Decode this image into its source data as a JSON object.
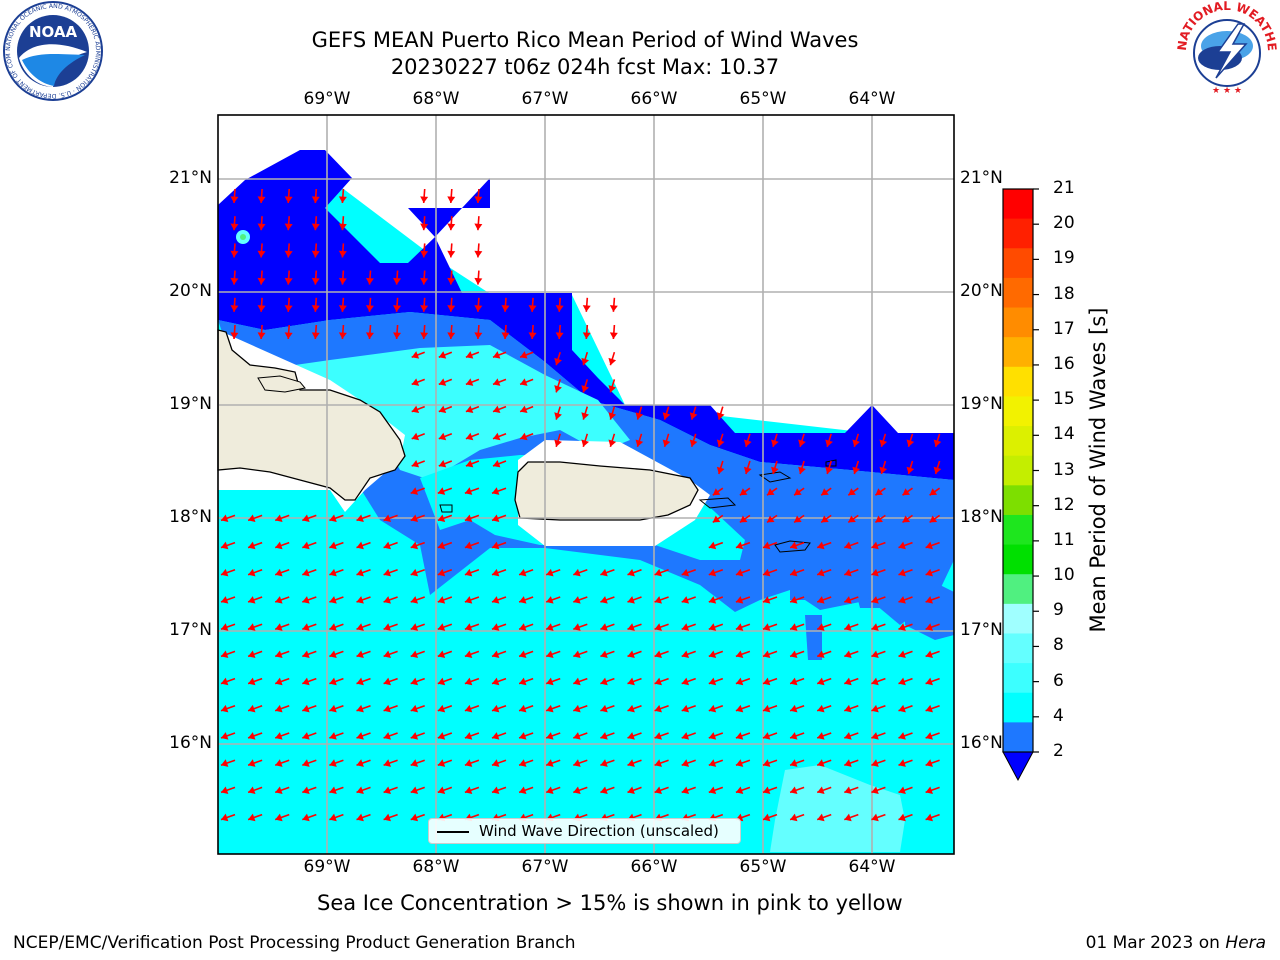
{
  "title": {
    "line1": "GEFS MEAN Puerto Rico Mean Period of Wind Waves",
    "line2": "20230227 t06z 024h fcst   Max: 10.37"
  },
  "map": {
    "lon_labels": [
      "69°W",
      "68°W",
      "67°W",
      "66°W",
      "65°W",
      "64°W"
    ],
    "lat_labels": [
      "21°N",
      "20°N",
      "19°N",
      "18°N",
      "17°N",
      "16°N"
    ],
    "legend_label": "Wind Wave Direction (unscaled)"
  },
  "colorbar": {
    "label": "Mean Period of Wind Waves [s]",
    "ticks": [
      "21",
      "20",
      "19",
      "18",
      "17",
      "16",
      "15",
      "14",
      "13",
      "12",
      "11",
      "10",
      "9",
      "8",
      "6",
      "4",
      "2"
    ],
    "colors": [
      "#ff0000",
      "#ff2000",
      "#ff4b00",
      "#ff6a00",
      "#ff8c00",
      "#ffb000",
      "#ffe000",
      "#f2f200",
      "#dcf000",
      "#c4ee00",
      "#7ddf00",
      "#1ee61e",
      "#00e000",
      "#50f080",
      "#a0ffff",
      "#64ffff",
      "#3cffff",
      "#00ffff",
      "#1e78ff"
    ],
    "underflow_color": "#0000ff"
  },
  "subtitle": "Sea Ice Concentration > 15% is shown in pink to yellow",
  "footer": {
    "left": "NCEP/EMC/Verification Post Processing Product Generation Branch",
    "date": "01 Mar 2023 on ",
    "machine": "Hera"
  },
  "logos": {
    "noaa_text": "NOAA",
    "noaa_ring": "NATIONAL OCEANIC AND ATMOSPHERIC ADMINISTRATION · U.S. DEPARTMENT OF COMMERCE",
    "nws_ring": "NATIONAL WEATHER SERVICE"
  }
}
